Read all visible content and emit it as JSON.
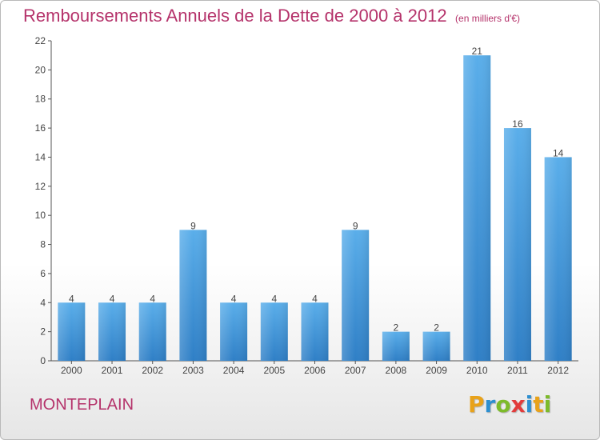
{
  "header": {
    "title": "Remboursements Annuels de la Dette de 2000 à 2012",
    "unit": "(en milliers d'€)"
  },
  "footer": {
    "commune": "MONTEPLAIN",
    "brand_letters": [
      {
        "char": "P",
        "color": "#e8a21a"
      },
      {
        "char": "r",
        "color": "#2d8fd0"
      },
      {
        "char": "o",
        "color": "#7dbb2a"
      },
      {
        "char": "x",
        "color": "#e23b3b"
      },
      {
        "char": "i",
        "color": "#2d8fd0"
      },
      {
        "char": "t",
        "color": "#e8a21a"
      },
      {
        "char": "i",
        "color": "#7dbb2a"
      }
    ]
  },
  "colors": {
    "bar_top": "#5aaeea",
    "bar_bottom": "#2f7fc6",
    "title": "#b5336b",
    "axis": "#555555"
  },
  "chart_data": {
    "type": "bar",
    "title": "Remboursements Annuels de la Dette de 2000 à 2012",
    "categories": [
      "2000",
      "2001",
      "2002",
      "2003",
      "2004",
      "2005",
      "2006",
      "2007",
      "2008",
      "2009",
      "2010",
      "2011",
      "2012"
    ],
    "values": [
      4,
      4,
      4,
      9,
      4,
      4,
      4,
      9,
      2,
      2,
      21,
      16,
      14
    ],
    "ylim": [
      0,
      22
    ],
    "yticks": [
      0,
      2,
      4,
      6,
      8,
      10,
      12,
      14,
      16,
      18,
      20,
      22
    ],
    "grid": false,
    "legend": "none"
  }
}
